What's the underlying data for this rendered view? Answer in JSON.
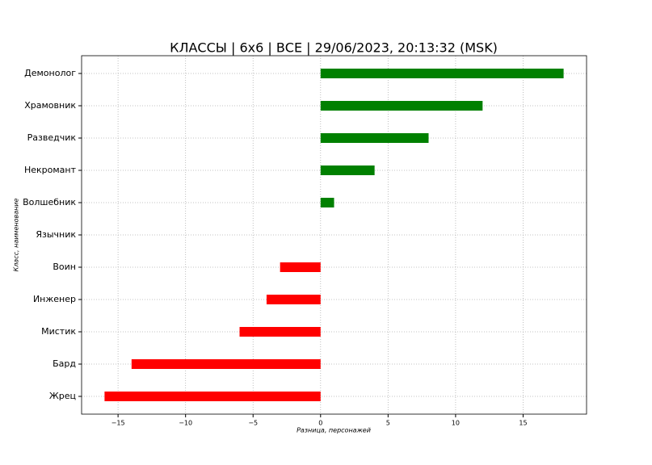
{
  "chart_data": {
    "type": "barh",
    "title": "КЛАССЫ | 6x6 | ВСЕ | 29/06/2023, 20:13:32 (MSK)",
    "xlabel": "Разница, персонажей",
    "ylabel": "Класс, наименование",
    "categories": [
      "Демонолог",
      "Храмовник",
      "Разведчик",
      "Некромант",
      "Волшебник",
      "Язычник",
      "Воин",
      "Инженер",
      "Мистик",
      "Бард",
      "Жрец"
    ],
    "values": [
      18,
      12,
      8,
      4,
      1,
      0,
      -3,
      -4,
      -6,
      -14,
      -16
    ],
    "positive_color": "#008000",
    "negative_color": "#ff0000",
    "xlim": [
      -17.7,
      19.7
    ],
    "xticks": [
      {
        "value": -15,
        "label": "−15"
      },
      {
        "value": -10,
        "label": "−10"
      },
      {
        "value": -5,
        "label": "−5"
      },
      0,
      5,
      10,
      15
    ],
    "grid": true
  }
}
